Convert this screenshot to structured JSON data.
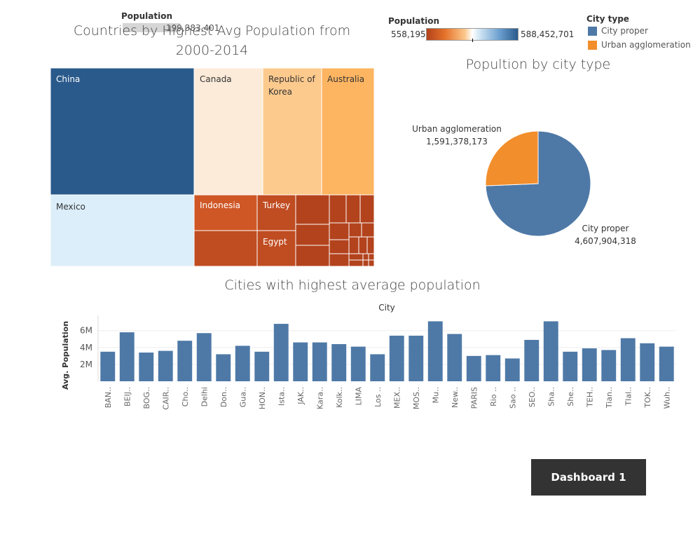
{
  "treemap": {
    "title_line1": "Countries by Highest Avg Population from",
    "title_line2": "2000-2014",
    "legend_title": "Population",
    "legend_value": "199,383,401",
    "countries": [
      {
        "name": "China",
        "color": "#2a5a8b"
      },
      {
        "name": "Canada",
        "color": "#fdebd9"
      },
      {
        "name": "Republic of Korea",
        "color": "#fdca8e"
      },
      {
        "name": "Australia",
        "color": "#fdb562"
      },
      {
        "name": "Mexico",
        "color": "#dbeef9"
      },
      {
        "name": "Indonesia",
        "color": "#cf5726"
      },
      {
        "name": "Turkey",
        "color": "#c04c22"
      },
      {
        "name": "Egypt",
        "color": "#c04c22"
      }
    ]
  },
  "color_legend": {
    "title": "Population",
    "min": "558,195",
    "max": "588,452,701"
  },
  "city_type_legend": {
    "title": "City type",
    "items": [
      {
        "label": "City proper",
        "color": "#4e79a7"
      },
      {
        "label": "Urban agglomeration",
        "color": "#f28e2b"
      }
    ]
  },
  "chart_data": [
    {
      "type": "pie",
      "title": "Popultion by city type",
      "slices": [
        {
          "label": "City proper",
          "value": 4607904318,
          "display": "4,607,904,318",
          "color": "#4e79a7"
        },
        {
          "label": "Urban agglomeration",
          "value": 1591378173,
          "display": "1,591,378,173",
          "color": "#f28e2b"
        }
      ]
    },
    {
      "type": "bar",
      "title": "Cities with highest average population",
      "xlabel": "City",
      "ylabel": "Avg. Population",
      "ylim": [
        0,
        7800000
      ],
      "yticks": [
        {
          "value": 2000000,
          "label": "2M"
        },
        {
          "value": 4000000,
          "label": "4M"
        },
        {
          "value": 6000000,
          "label": "6M"
        }
      ],
      "bar_color": "#4e79a7",
      "categories": [
        "BAN..",
        "BEIJ..",
        "BOG..",
        "CAIR..",
        "Cho..",
        "Delhi",
        "Don..",
        "Gua..",
        "HON..",
        "Ista..",
        "JAK..",
        "Kara..",
        "Kolk..",
        "LIMA",
        "Los ..",
        "MEX..",
        "MOS..",
        "Mu..",
        "New..",
        "PARIS",
        "Rio ..",
        "Sao ..",
        "SEO..",
        "Sha..",
        "She..",
        "TEH..",
        "Tian..",
        "Tlal..",
        "TOK..",
        "Wuh.."
      ],
      "values": [
        3500000,
        5800000,
        3400000,
        3600000,
        4800000,
        5700000,
        3200000,
        4200000,
        3500000,
        6800000,
        4600000,
        4600000,
        4400000,
        4100000,
        3200000,
        5400000,
        5400000,
        7100000,
        5600000,
        3000000,
        3100000,
        2700000,
        4900000,
        7100000,
        3500000,
        3900000,
        3700000,
        5100000,
        4500000,
        4100000
      ]
    }
  ],
  "dashboard_tab": {
    "label": "Dashboard 1"
  }
}
